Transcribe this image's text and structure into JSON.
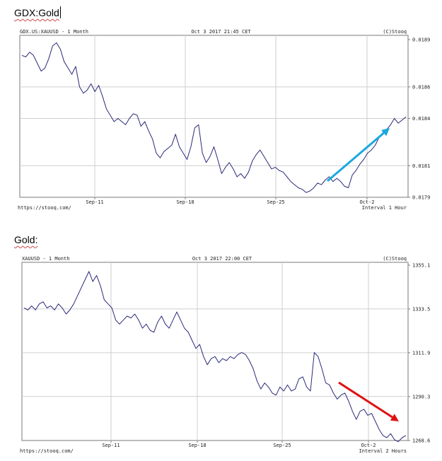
{
  "labels": {
    "top": "GDX:Gold",
    "bottom": "Gold:"
  },
  "colors": {
    "line": "#2a2a7a",
    "grid": "#cfcfcf",
    "frame": "#7a7a7a",
    "arrow_up": "#1aa8e0",
    "arrow_down": "#e01010"
  },
  "chart_data": [
    {
      "type": "line",
      "header": {
        "left": "GDX.US:XAUUSD - 1 Month",
        "center": "Oct 3 2017 21:45 CET",
        "right": "(C)Stooq"
      },
      "footer": {
        "left": "https://stooq.com/",
        "right": "Interval 1 Hour"
      },
      "x_ticks": [
        "Sep-11",
        "Sep-18",
        "Sep-25",
        "Oct-2"
      ],
      "y_ticks": [
        "0.0189",
        "0.0186",
        "0.0184",
        "0.0181",
        "0.0179"
      ],
      "ylim": [
        0.0179,
        0.0189
      ],
      "annotation": "blue arrow pointing up at right",
      "series": [
        {
          "x": [
            0,
            0.01,
            0.02,
            0.03,
            0.04,
            0.05,
            0.06,
            0.07,
            0.08,
            0.09,
            0.1,
            0.11,
            0.12,
            0.13,
            0.14,
            0.15,
            0.16,
            0.17,
            0.18,
            0.19,
            0.2,
            0.21,
            0.22,
            0.23,
            0.24,
            0.25,
            0.26,
            0.27,
            0.28,
            0.29,
            0.3,
            0.31,
            0.32,
            0.33,
            0.34,
            0.35,
            0.36,
            0.37,
            0.38,
            0.39,
            0.4,
            0.41,
            0.42,
            0.43,
            0.44,
            0.45,
            0.46,
            0.47,
            0.48,
            0.49,
            0.5,
            0.51,
            0.52,
            0.53,
            0.54,
            0.55,
            0.56,
            0.57,
            0.58,
            0.59,
            0.6,
            0.61,
            0.62,
            0.63,
            0.64,
            0.65,
            0.66,
            0.67,
            0.68,
            0.69,
            0.7,
            0.71,
            0.72,
            0.73,
            0.74,
            0.75,
            0.76,
            0.77,
            0.78,
            0.79,
            0.8,
            0.81,
            0.82,
            0.83,
            0.84,
            0.85,
            0.86,
            0.87,
            0.88,
            0.89,
            0.9,
            0.91,
            0.92,
            0.93,
            0.94,
            0.95,
            0.96,
            0.97,
            0.98,
            0.99,
            1
          ],
          "y": [
            0.0188,
            0.01879,
            0.01882,
            0.0188,
            0.01875,
            0.0187,
            0.01872,
            0.01878,
            0.01886,
            0.01888,
            0.01884,
            0.01876,
            0.01872,
            0.01868,
            0.01873,
            0.0186,
            0.01856,
            0.01858,
            0.01862,
            0.01857,
            0.01861,
            0.01854,
            0.01846,
            0.01842,
            0.01838,
            0.0184,
            0.01838,
            0.01836,
            0.0184,
            0.01843,
            0.01842,
            0.01835,
            0.01838,
            0.01832,
            0.01827,
            0.01818,
            0.01815,
            0.01819,
            0.01821,
            0.01823,
            0.0183,
            0.01822,
            0.01818,
            0.01814,
            0.01822,
            0.01834,
            0.01836,
            0.01818,
            0.01812,
            0.01816,
            0.01822,
            0.01814,
            0.01805,
            0.01809,
            0.01812,
            0.01808,
            0.01803,
            0.01805,
            0.01802,
            0.01806,
            0.01813,
            0.01817,
            0.0182,
            0.01816,
            0.01812,
            0.01808,
            0.01809,
            0.01807,
            0.01806,
            0.01803,
            0.018,
            0.01798,
            0.01796,
            0.01795,
            0.01793,
            0.01794,
            0.01796,
            0.01799,
            0.01798,
            0.01801,
            0.01803,
            0.018,
            0.01802,
            0.018,
            0.01797,
            0.01796,
            0.01804,
            0.01807,
            0.01811,
            0.01814,
            0.01818,
            0.0182,
            0.01823,
            0.01828,
            0.01831,
            0.01833,
            0.01836,
            0.0184,
            0.01837,
            0.01839,
            0.01841
          ]
        }
      ]
    },
    {
      "type": "line",
      "header": {
        "left": "XAUUSD - 1 Month",
        "center": "Oct 3 2017 22:00 CET",
        "right": "(C)Stooq"
      },
      "footer": {
        "left": "https://stooq.com/",
        "right": "Interval 2 Hours"
      },
      "x_ticks": [
        "Sep-11",
        "Sep-18",
        "Sep-25",
        "Oct-2"
      ],
      "y_ticks": [
        "1355.1",
        "1333.5",
        "1311.9",
        "1290.3",
        "1268.6"
      ],
      "ylim": [
        1268.6,
        1355.1
      ],
      "annotation": "red arrow pointing down at right",
      "series": [
        {
          "x": [
            0,
            0.01,
            0.02,
            0.03,
            0.04,
            0.05,
            0.06,
            0.07,
            0.08,
            0.09,
            0.1,
            0.11,
            0.12,
            0.13,
            0.14,
            0.15,
            0.16,
            0.17,
            0.18,
            0.19,
            0.2,
            0.21,
            0.22,
            0.23,
            0.24,
            0.25,
            0.26,
            0.27,
            0.28,
            0.29,
            0.3,
            0.31,
            0.32,
            0.33,
            0.34,
            0.35,
            0.36,
            0.37,
            0.38,
            0.39,
            0.4,
            0.41,
            0.42,
            0.43,
            0.44,
            0.45,
            0.46,
            0.47,
            0.48,
            0.49,
            0.5,
            0.51,
            0.52,
            0.53,
            0.54,
            0.55,
            0.56,
            0.57,
            0.58,
            0.59,
            0.6,
            0.61,
            0.62,
            0.63,
            0.64,
            0.65,
            0.66,
            0.67,
            0.68,
            0.69,
            0.7,
            0.71,
            0.72,
            0.73,
            0.74,
            0.75,
            0.76,
            0.77,
            0.78,
            0.79,
            0.8,
            0.81,
            0.82,
            0.83,
            0.84,
            0.85,
            0.86,
            0.87,
            0.88,
            0.89,
            0.9,
            0.91,
            0.92,
            0.93,
            0.94,
            0.95,
            0.96,
            0.97,
            0.98,
            0.99,
            1
          ],
          "y": [
            1334,
            1333,
            1335,
            1333,
            1336,
            1337,
            1334,
            1335,
            1333,
            1336,
            1334,
            1331,
            1333,
            1336,
            1340,
            1344,
            1348,
            1352,
            1347,
            1350,
            1345,
            1338,
            1336,
            1334,
            1328,
            1326,
            1328,
            1330,
            1329,
            1331,
            1328,
            1324,
            1326,
            1323,
            1322,
            1327,
            1330,
            1326,
            1324,
            1328,
            1332,
            1328,
            1324,
            1322,
            1318,
            1314,
            1316,
            1310,
            1306,
            1309,
            1310,
            1307,
            1309,
            1308,
            1310,
            1309,
            1311,
            1312,
            1311,
            1308,
            1304,
            1298,
            1294,
            1297,
            1295,
            1292,
            1291,
            1295,
            1293,
            1296,
            1293,
            1294,
            1299,
            1300,
            1295,
            1293,
            1312,
            1310,
            1304,
            1297,
            1296,
            1292,
            1289,
            1291,
            1292,
            1288,
            1283,
            1279,
            1283,
            1284,
            1281,
            1282,
            1278,
            1274,
            1271,
            1270,
            1272,
            1269,
            1268,
            1270,
            1271
          ]
        }
      ]
    }
  ]
}
